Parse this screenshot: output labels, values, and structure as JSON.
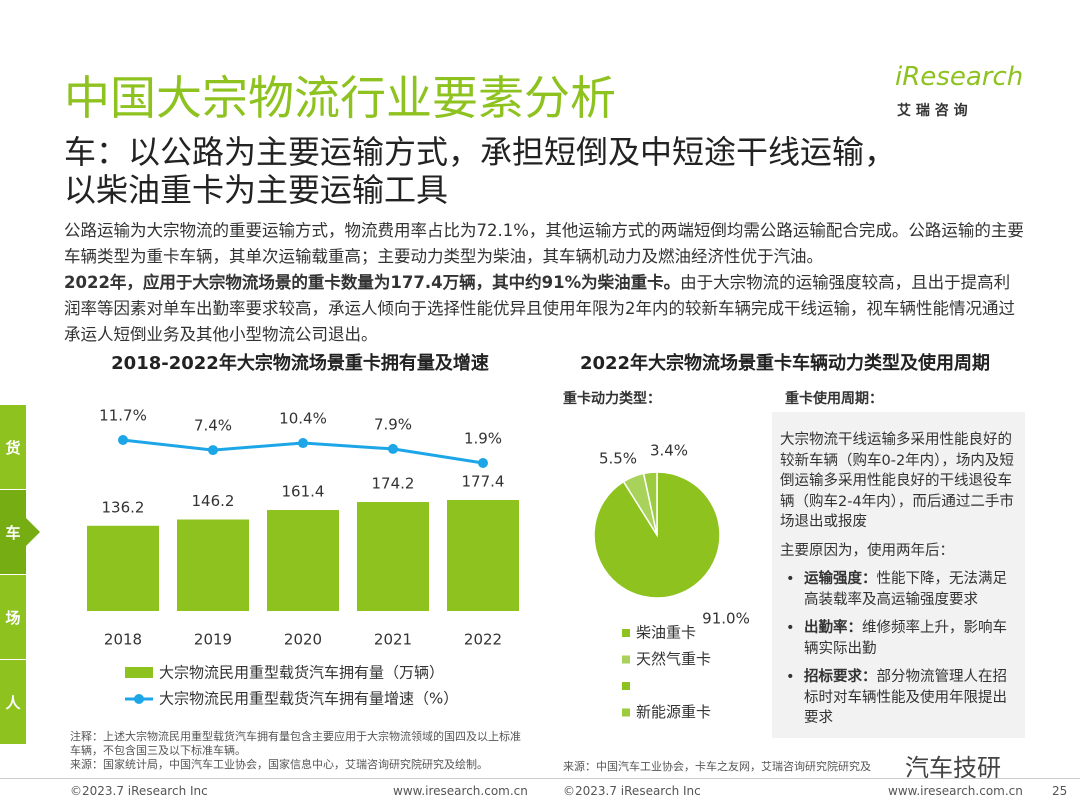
{
  "header": {
    "title": "中国大宗物流行业要素分析",
    "subtitle_line1": "车：以公路为主要运输方式，承担短倒及中短途干线运输，",
    "subtitle_line2": "以柴油重卡为主要运输工具",
    "logo": "iResearch",
    "logo_sub": "艾 瑞 咨 询"
  },
  "body": {
    "text1": "公路运输为大宗物流的重要运输方式，物流费用率占比为72.1%，其他运输方式的两端短倒均需公路运输配合完成。公路运输的主要车辆类型为重卡车辆，其单次运输载重高；主要动力类型为柴油，其车辆机动力及燃油经济性优于汽油。",
    "bold": "2022年，应用于大宗物流场景的重卡数量为177.4万辆，其中约91%为柴油重卡。",
    "text2": "由于大宗物流的运输强度较高，且出于提高利润率等因素对单车出勤率要求较高，承运人倾向于选择性能优异且使用年限为2年内的较新车辆完成干线运输，视车辆性能情况通过承运人短倒业务及其他小型物流公司退出。"
  },
  "side_tabs": [
    "货",
    "车",
    "场",
    "人"
  ],
  "chart_data": [
    {
      "type": "bar_line",
      "title": "2018-2022年大宗物流场景重卡拥有量及增速",
      "categories": [
        "2018",
        "2019",
        "2020",
        "2021",
        "2022"
      ],
      "series": [
        {
          "name": "大宗物流民用重型载货汽车拥有量（万辆）",
          "color": "#8dc21f",
          "values": [
            136.2,
            146.2,
            161.4,
            174.2,
            177.4
          ]
        },
        {
          "name": "大宗物流民用重型载货汽车拥有量增速（%）",
          "color": "#1ca6e8",
          "axis": "y2",
          "values": [
            11.7,
            7.4,
            10.4,
            7.9,
            1.9
          ],
          "value_labels": [
            "11.7%",
            "7.4%",
            "10.4%",
            "7.9%",
            "1.9%"
          ]
        }
      ]
    },
    {
      "type": "pie",
      "title": "2022年大宗物流场景重卡车辆动力类型及使用周期",
      "subtitle": "重卡动力类型：",
      "categories": [
        "柴油重卡",
        "天然气重卡",
        null,
        "新能源重卡"
      ],
      "values": [
        91.0,
        5.5,
        null,
        3.4
      ],
      "value_labels": [
        "91.0%",
        "5.5%",
        null,
        "3.4%"
      ],
      "colors": [
        "#8dc21f",
        "#a9d25a",
        "#8dc21f",
        "#9ccb3f"
      ]
    }
  ],
  "cycle_box": {
    "heading": "重卡使用周期：",
    "para1": "大宗物流干线运输多采用性能良好的较新车辆（购车0-2年内），场内及短倒运输多采用性能良好的干线退役车辆（购车2-4年内），而后通过二手市场退出或报废",
    "para2": "主要原因为，使用两年后：",
    "bullets": [
      {
        "lead": "运输强度：",
        "text": "性能下降，无法满足高装载率及高运输强度要求"
      },
      {
        "lead": "出勤率：",
        "text": "维修频率上升，影响车辆实际出勤"
      },
      {
        "lead": "招标要求：",
        "text": "部分物流管理人在招标时对车辆性能及使用年限提出要求"
      }
    ]
  },
  "notes": {
    "note": "注释：上述大宗物流民用重型载货汽车拥有量包含主要应用于大宗物流领域的国四及以上标准车辆，不包含国三及以下标准车辆。",
    "source_left": "来源：国家统计局，中国汽车工业协会，国家信息中心，艾瑞咨询研究院研究及绘制。",
    "source_right": "来源：中国汽车工业协会，卡车之友网，艾瑞咨询研究院研究及"
  },
  "footer": {
    "copyright_left": "©2023.7 iResearch Inc",
    "url_left": "www.iresearch.com.cn",
    "copyright_right": "©2023.7 iResearch Inc",
    "url_right": "www.iresearch.com.cn",
    "page": "25",
    "watermark": "汽车技研"
  }
}
